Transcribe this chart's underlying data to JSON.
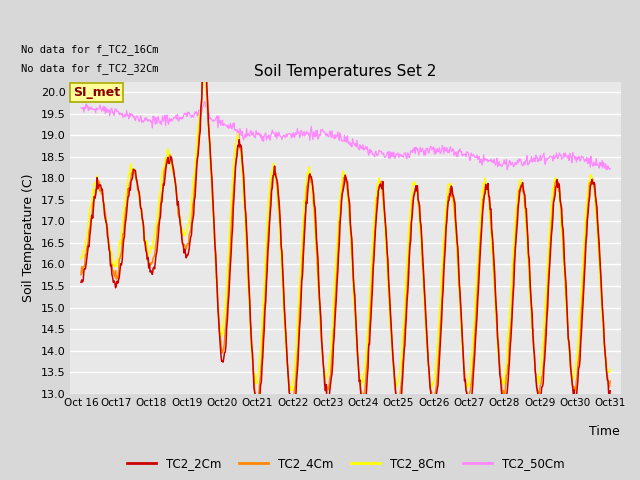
{
  "title": "Soil Temperatures Set 2",
  "xlabel": "Time",
  "ylabel": "Soil Temperature (C)",
  "no_data_text_1": "No data for f_TC2_16Cm",
  "no_data_text_2": "No data for f_TC2_32Cm",
  "legend_label_text": "SI_met",
  "x_tick_labels": [
    "Oct 16",
    "Oct 17",
    "Oct 18",
    "Oct 19",
    "Oct 20",
    "Oct 21",
    "Oct 22",
    "Oct 23",
    "Oct 24",
    "Oct 25",
    "Oct 26",
    "Oct 27",
    "Oct 28",
    "Oct 29",
    "Oct 30",
    "Oct 31"
  ],
  "ylim": [
    13.0,
    20.25
  ],
  "yticks": [
    13.0,
    13.5,
    14.0,
    14.5,
    15.0,
    15.5,
    16.0,
    16.5,
    17.0,
    17.5,
    18.0,
    18.5,
    19.0,
    19.5,
    20.0
  ],
  "series_colors": {
    "TC2_2Cm": "#cc0000",
    "TC2_4Cm": "#ff8800",
    "TC2_8Cm": "#ffff00",
    "TC2_50Cm": "#ff88ff"
  },
  "series_labels": [
    "TC2_2Cm",
    "TC2_4Cm",
    "TC2_8Cm",
    "TC2_50Cm"
  ],
  "bg_color": "#d8d8d8",
  "plot_bg_color": "#e8e8e8",
  "grid_color": "white",
  "SI_met_box_color": "#ffff99",
  "SI_met_text_color": "#880000"
}
